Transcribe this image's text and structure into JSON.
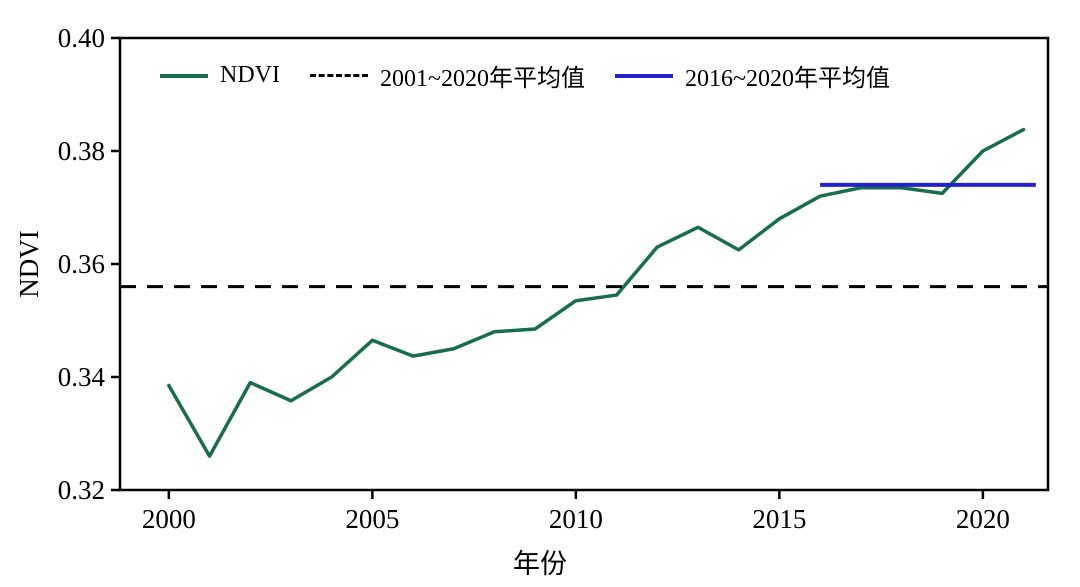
{
  "chart_data": {
    "type": "line",
    "title": "",
    "xlabel": "年份",
    "ylabel": "NDVI",
    "xlim": [
      1998.8,
      2021.6
    ],
    "ylim": [
      0.32,
      0.4
    ],
    "x_ticks": [
      2000,
      2005,
      2010,
      2015,
      2020
    ],
    "y_ticks": [
      0.32,
      0.34,
      0.36,
      0.38,
      0.4
    ],
    "grid": false,
    "legend_position": "top-left-inside",
    "x": [
      2000,
      2001,
      2002,
      2003,
      2004,
      2005,
      2006,
      2007,
      2008,
      2009,
      2010,
      2011,
      2012,
      2013,
      2014,
      2015,
      2016,
      2017,
      2018,
      2019,
      2020,
      2021
    ],
    "series": [
      {
        "name": "NDVI",
        "style": "solid",
        "color": "#186e4b",
        "values": [
          0.3385,
          0.326,
          0.339,
          0.3358,
          0.34,
          0.3465,
          0.3437,
          0.345,
          0.348,
          0.3485,
          0.3535,
          0.3545,
          0.363,
          0.3665,
          0.3625,
          0.368,
          0.372,
          0.3735,
          0.3735,
          0.3725,
          0.38,
          0.3838
        ]
      },
      {
        "name": "2001~2020年平均值",
        "style": "dashed",
        "color": "#000000",
        "value": 0.356,
        "x_range": [
          1998.8,
          2021.6
        ]
      },
      {
        "name": "2016~2020年平均值",
        "style": "solid",
        "color": "#2222cc",
        "value": 0.374,
        "x_range": [
          2016,
          2021.3
        ]
      }
    ]
  }
}
